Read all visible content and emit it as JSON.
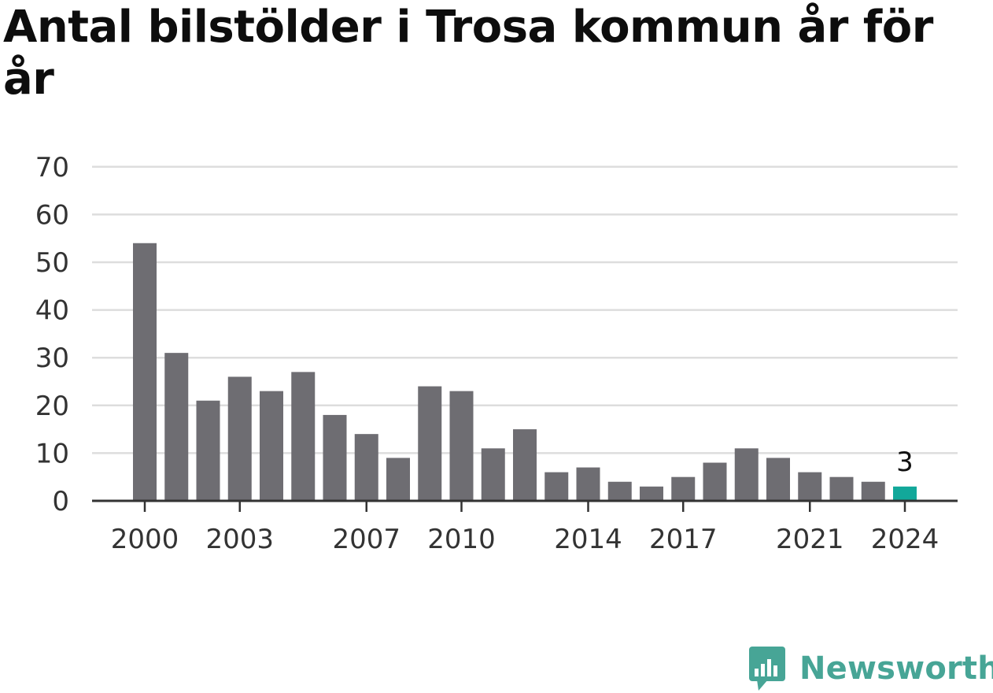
{
  "title": "Antal bilstölder i Trosa kommun år för år",
  "brand": {
    "name": "Newsworthy",
    "logo_icon": "bar-chart-bubble-icon",
    "color": "#47a596"
  },
  "colors": {
    "bar": "#6e6d72",
    "highlight": "#12a89a",
    "grid": "#dddddd",
    "axis": "#333333"
  },
  "chart_data": {
    "type": "bar",
    "title": "Antal bilstölder i Trosa kommun år för år",
    "xlabel": "",
    "ylabel": "",
    "categories": [
      "2000",
      "2001",
      "2002",
      "2003",
      "2004",
      "2005",
      "2006",
      "2007",
      "2008",
      "2009",
      "2010",
      "2011",
      "2012",
      "2013",
      "2014",
      "2015",
      "2016",
      "2017",
      "2018",
      "2019",
      "2020",
      "2021",
      "2022",
      "2023",
      "2024"
    ],
    "values": [
      54,
      31,
      21,
      26,
      23,
      27,
      18,
      14,
      9,
      24,
      23,
      11,
      15,
      6,
      7,
      4,
      3,
      5,
      8,
      11,
      9,
      6,
      5,
      4,
      3
    ],
    "x_tick_labels": [
      "2000",
      "2003",
      "2007",
      "2010",
      "2014",
      "2017",
      "2021",
      "2024"
    ],
    "y_ticks": [
      0,
      10,
      20,
      30,
      40,
      50,
      60,
      70
    ],
    "ylim": [
      0,
      70
    ],
    "grid": true,
    "highlight": {
      "category": "2024",
      "label": "3"
    }
  }
}
